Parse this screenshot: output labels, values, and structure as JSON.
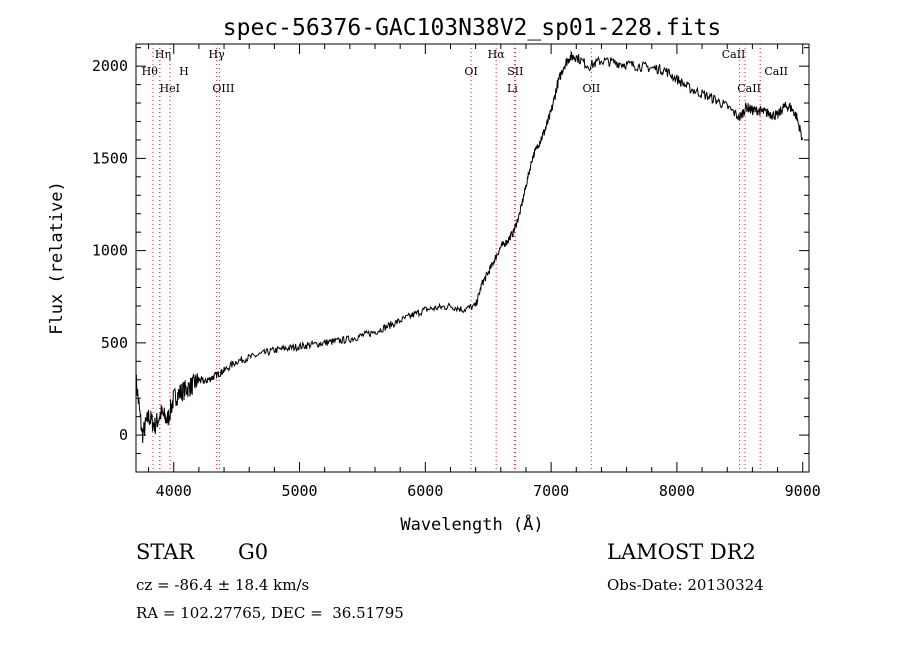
{
  "chart_data": {
    "type": "line",
    "title": "spec-56376-GAC103N38V2_sp01-228.fits",
    "xlabel": "Wavelength (Å)",
    "ylabel": "Flux (relative)",
    "xlim": [
      3700,
      9050
    ],
    "ylim": [
      -200,
      2120
    ],
    "xticks": [
      4000,
      5000,
      6000,
      7000,
      8000,
      9000
    ],
    "xtick_labels": [
      "4000",
      "5000",
      "6000",
      "7000",
      "8000",
      "9000"
    ],
    "yticks": [
      0,
      500,
      1000,
      1500,
      2000
    ],
    "ytick_labels": [
      "0",
      "500",
      "1000",
      "1500",
      "2000"
    ],
    "grid": false,
    "line_color": "#000000",
    "marker_color": "#d62728",
    "series": [
      {
        "x": [
          3700,
          3750,
          3800,
          3850,
          3900,
          3950,
          4000,
          4050,
          4100,
          4150,
          4200,
          4250,
          4300,
          4350,
          4400,
          4500,
          4600,
          4700,
          4800,
          4900,
          5000,
          5100,
          5200,
          5300,
          5400,
          5500,
          5600,
          5700,
          5800,
          5900,
          6000,
          6100,
          6200,
          6300,
          6400,
          6450,
          6500,
          6550,
          6600,
          6650,
          6700,
          6750,
          6800,
          6850,
          6900,
          6950,
          7000,
          7050,
          7100,
          7150,
          7200,
          7300,
          7400,
          7500,
          7600,
          7700,
          7800,
          7900,
          8000,
          8100,
          8200,
          8300,
          8400,
          8500,
          8550,
          8600,
          8650,
          8700,
          8750,
          8800,
          8850,
          8900,
          8950,
          9000
        ],
        "y": [
          300,
          0,
          100,
          50,
          120,
          80,
          200,
          230,
          250,
          270,
          300,
          290,
          310,
          330,
          350,
          400,
          420,
          440,
          460,
          470,
          480,
          490,
          500,
          510,
          520,
          540,
          560,
          590,
          620,
          650,
          680,
          690,
          700,
          680,
          700,
          820,
          880,
          950,
          1020,
          1050,
          1100,
          1200,
          1350,
          1500,
          1580,
          1650,
          1750,
          1900,
          2000,
          2050,
          2050,
          2000,
          2030,
          2020,
          2010,
          2000,
          1990,
          1980,
          1930,
          1880,
          1850,
          1820,
          1780,
          1720,
          1780,
          1760,
          1760,
          1750,
          1740,
          1730,
          1780,
          1780,
          1730,
          1600
        ]
      }
    ],
    "lines": [
      {
        "name": "Hη",
        "x": 3835
      },
      {
        "name": "Hθ",
        "x": 3889
      },
      {
        "name": "HeI",
        "x": 3889
      },
      {
        "name": "H",
        "x": 3970
      },
      {
        "name": "Hγ",
        "x": 4341
      },
      {
        "name": "OIII",
        "x": 4363
      },
      {
        "name": "OI",
        "x": 6364
      },
      {
        "name": "Hα",
        "x": 6563
      },
      {
        "name": "SII",
        "x": 6716
      },
      {
        "name": "Li",
        "x": 6708
      },
      {
        "name": "OII",
        "x": 7320
      },
      {
        "name": "CaII",
        "x": 8498
      },
      {
        "name": "CaII",
        "x": 8542
      },
      {
        "name": "CaII",
        "x": 8662
      }
    ]
  },
  "info": {
    "object_class": "STAR",
    "subclass": "G0",
    "survey": "LAMOST DR2",
    "redshift": "cz = -86.4 ± 18.4 km/s",
    "obs_date": "Obs-Date: 20130324",
    "coords": "RA = 102.27765, DEC =  36.51795"
  }
}
